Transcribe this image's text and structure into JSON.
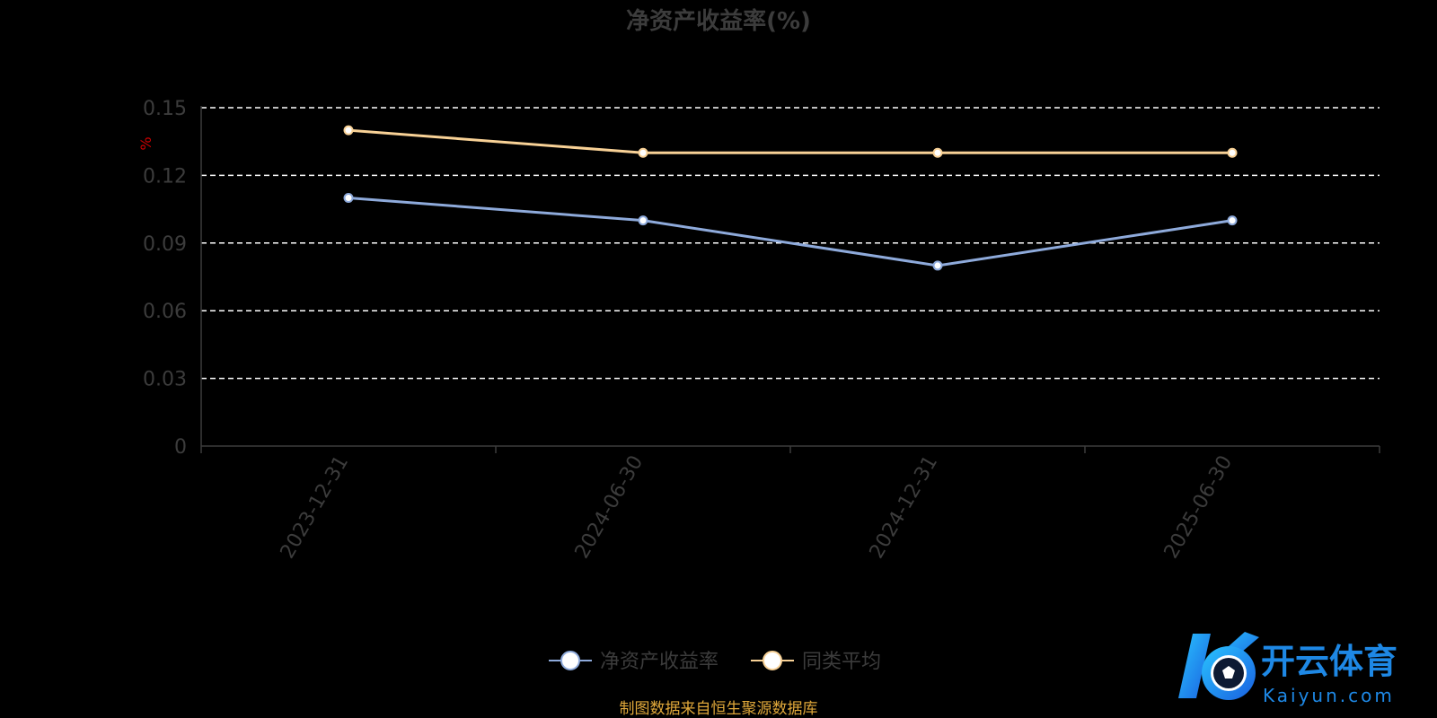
{
  "chart_data": {
    "type": "line",
    "title": "净资产收益率(%)",
    "ylabel": "%",
    "xlabel": "",
    "categories": [
      "2023-12-31",
      "2024-06-30",
      "2024-12-31",
      "2025-06-30"
    ],
    "y_ticks": [
      "0",
      "0.03",
      "0.06",
      "0.09",
      "0.12",
      "0.15"
    ],
    "ylim": [
      0,
      0.15
    ],
    "grid": true,
    "legend_position": "bottom",
    "series": [
      {
        "name": "净资产收益率",
        "values": [
          0.11,
          0.1,
          0.08,
          0.1
        ],
        "color": "#8eaadb"
      },
      {
        "name": "同类平均",
        "values": [
          0.14,
          0.13,
          0.13,
          0.13
        ],
        "color": "#f8d196"
      }
    ]
  },
  "source_note": "制图数据来自恒生聚源数据库",
  "colors": {
    "title": "#3c3c3c",
    "axis_text": "#3c3c3c",
    "grid": "#ffffff",
    "ylabel": "#cc0000",
    "source_note": "#e0a83a"
  },
  "watermark": {
    "brand": "开云体育",
    "domain": "Kaiyun.com",
    "icon": "kaiyun-logo-icon"
  }
}
